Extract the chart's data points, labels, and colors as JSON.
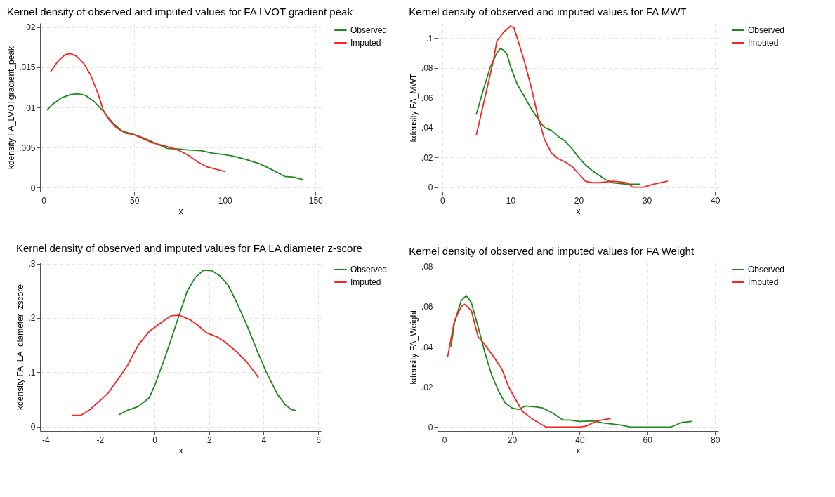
{
  "chart_data": [
    {
      "type": "line",
      "title": "Kernel density of observed and imputed values for FA LVOT gradient peak",
      "xlabel": "x",
      "ylabel": "kdensity FA_LVOTgradient_peak",
      "xlim": [
        -2,
        153
      ],
      "ylim": [
        -0.0005,
        0.0205
      ],
      "xticks": [
        0,
        50,
        100,
        150
      ],
      "yticks": [
        {
          "value": 0,
          "label": "0"
        },
        {
          "value": 0.005,
          "label": ".005"
        },
        {
          "value": 0.01,
          "label": ".01"
        },
        {
          "value": 0.015,
          "label": ".015"
        },
        {
          "value": 0.02,
          "label": ".02"
        }
      ],
      "grid": true,
      "legend": "right",
      "line_style": "solid",
      "series": [
        {
          "name": "Observed",
          "color": "#1a8a1a",
          "x": [
            2,
            5,
            10,
            15,
            19,
            23,
            28,
            33,
            38,
            43,
            50,
            55,
            60,
            68,
            75,
            80,
            87,
            93,
            100,
            105,
            112,
            120,
            128,
            133,
            138,
            143
          ],
          "values": [
            0.0097,
            0.0104,
            0.0112,
            0.0116,
            0.0117,
            0.0115,
            0.0107,
            0.0095,
            0.0081,
            0.0071,
            0.0066,
            0.0062,
            0.0057,
            0.0049,
            0.0048,
            0.0047,
            0.0046,
            0.0043,
            0.0041,
            0.0039,
            0.0035,
            0.0029,
            0.002,
            0.0014,
            0.0013,
            0.001
          ]
        },
        {
          "name": "Imputed",
          "color": "#ff2020",
          "x": [
            4,
            8,
            12,
            15,
            18,
            22,
            26,
            30,
            33,
            36,
            40,
            45,
            50,
            55,
            60,
            65,
            70,
            75,
            80,
            85,
            90,
            95,
            100
          ],
          "values": [
            0.0145,
            0.0158,
            0.0166,
            0.0167,
            0.0164,
            0.0155,
            0.014,
            0.0117,
            0.0096,
            0.0085,
            0.0075,
            0.0068,
            0.0066,
            0.0061,
            0.0056,
            0.0053,
            0.005,
            0.0046,
            0.004,
            0.0032,
            0.0026,
            0.0023,
            0.002
          ]
        }
      ]
    },
    {
      "type": "line",
      "title": "Kernel density of observed and imputed values for FA MWT",
      "xlabel": "x",
      "ylabel": "kdensity FA_MWT",
      "xlim": [
        -0.7,
        40.5
      ],
      "ylim": [
        -0.003,
        0.11
      ],
      "xticks": [
        0,
        10,
        20,
        30,
        40
      ],
      "yticks": [
        {
          "value": 0,
          "label": "0"
        },
        {
          "value": 0.02,
          "label": ".02"
        },
        {
          "value": 0.04,
          "label": ".04"
        },
        {
          "value": 0.06,
          "label": ".06"
        },
        {
          "value": 0.08,
          "label": ".08"
        },
        {
          "value": 0.1,
          "label": ".1"
        }
      ],
      "grid": true,
      "legend": "right",
      "line_style": "solid",
      "series": [
        {
          "name": "Observed",
          "color": "#1a8a1a",
          "x": [
            5,
            6,
            7,
            8,
            8.5,
            9,
            9.5,
            10,
            11,
            12,
            13,
            14,
            15,
            16,
            17,
            18,
            19,
            20,
            21,
            22,
            23,
            24,
            25,
            27,
            29
          ],
          "values": [
            0.049,
            0.065,
            0.08,
            0.09,
            0.093,
            0.092,
            0.089,
            0.081,
            0.069,
            0.061,
            0.053,
            0.046,
            0.04,
            0.038,
            0.034,
            0.031,
            0.026,
            0.02,
            0.015,
            0.011,
            0.008,
            0.005,
            0.003,
            0.002,
            0.002
          ]
        },
        {
          "name": "Imputed",
          "color": "#ff2020",
          "x": [
            5,
            6,
            7,
            7.5,
            8,
            9,
            10,
            10.5,
            11,
            12,
            13,
            14,
            15,
            16,
            17,
            18,
            19,
            20,
            21,
            22,
            23,
            24,
            25,
            26,
            27,
            28,
            29.5,
            31,
            33
          ],
          "values": [
            0.035,
            0.055,
            0.075,
            0.085,
            0.098,
            0.104,
            0.108,
            0.107,
            0.1,
            0.085,
            0.068,
            0.048,
            0.032,
            0.023,
            0.019,
            0.017,
            0.014,
            0.009,
            0.004,
            0.003,
            0.003,
            0.0035,
            0.004,
            0.0035,
            0.003,
            0,
            0,
            0.002,
            0.004
          ]
        }
      ]
    },
    {
      "type": "line",
      "title": "Kernel density of observed and imputed values for FA LA diameter z-score",
      "xlabel": "x",
      "ylabel": "kdensity FA_LA_diameter_zscore",
      "xlim": [
        -4.2,
        6.1
      ],
      "ylim": [
        -0.008,
        0.302
      ],
      "xticks": [
        -4,
        -2,
        0,
        2,
        4,
        6
      ],
      "yticks": [
        {
          "value": 0,
          "label": "0"
        },
        {
          "value": 0.1,
          "label": ".1"
        },
        {
          "value": 0.2,
          "label": ".2"
        },
        {
          "value": 0.3,
          "label": ".3"
        }
      ],
      "grid": true,
      "legend": "right",
      "line_style": "solid",
      "series": [
        {
          "name": "Observed",
          "color": "#1a8a1a",
          "x": [
            -1.3,
            -1,
            -0.6,
            -0.2,
            0,
            0.4,
            0.8,
            1.2,
            1.5,
            1.8,
            2.1,
            2.4,
            2.7,
            3,
            3.4,
            3.8,
            4.1,
            4.5,
            4.8,
            5,
            5.15
          ],
          "values": [
            0.022,
            0.03,
            0.037,
            0.053,
            0.075,
            0.13,
            0.19,
            0.25,
            0.275,
            0.288,
            0.287,
            0.277,
            0.26,
            0.23,
            0.185,
            0.135,
            0.1,
            0.06,
            0.04,
            0.032,
            0.03
          ]
        },
        {
          "name": "Imputed",
          "color": "#ff2020",
          "x": [
            -3,
            -2.7,
            -2.4,
            -2,
            -1.7,
            -1.3,
            -1,
            -0.6,
            -0.2,
            0.2,
            0.6,
            0.9,
            1.3,
            1.6,
            1.9,
            2.3,
            2.6,
            3,
            3.4,
            3.8
          ],
          "values": [
            0.021,
            0.021,
            0.03,
            0.048,
            0.062,
            0.09,
            0.112,
            0.15,
            0.175,
            0.19,
            0.204,
            0.205,
            0.197,
            0.186,
            0.173,
            0.165,
            0.155,
            0.138,
            0.118,
            0.091
          ]
        }
      ]
    },
    {
      "type": "line",
      "title": "Kernel density of observed and imputed values for FA Weight",
      "xlabel": "x",
      "ylabel": "kdensity FA_Weight",
      "xlim": [
        -2,
        81
      ],
      "ylim": [
        -0.002,
        0.082
      ],
      "xticks": [
        0,
        20,
        40,
        60,
        80
      ],
      "yticks": [
        {
          "value": 0,
          "label": "0"
        },
        {
          "value": 0.02,
          "label": ".02"
        },
        {
          "value": 0.04,
          "label": ".04"
        },
        {
          "value": 0.06,
          "label": ".06"
        },
        {
          "value": 0.08,
          "label": ".08"
        }
      ],
      "grid": true,
      "legend": "right",
      "line_style": "solid",
      "series": [
        {
          "name": "Observed",
          "color": "#1a8a1a",
          "x": [
            2,
            3,
            5,
            6.5,
            8,
            10,
            12,
            14,
            16,
            18,
            20,
            22,
            24,
            27,
            29,
            32,
            35,
            37,
            40,
            44,
            47,
            52,
            55,
            60,
            67,
            70,
            73
          ],
          "values": [
            0.04,
            0.052,
            0.063,
            0.0655,
            0.062,
            0.05,
            0.037,
            0.026,
            0.018,
            0.012,
            0.0095,
            0.0087,
            0.0105,
            0.01,
            0.0095,
            0.007,
            0.0035,
            0.0035,
            0.0028,
            0.003,
            0.002,
            0.001,
            0,
            0,
            0,
            0.0022,
            0.0028
          ]
        },
        {
          "name": "Imputed",
          "color": "#ff2020",
          "x": [
            1,
            3,
            5,
            6,
            8,
            10,
            12,
            15,
            17,
            19,
            21,
            23,
            26,
            30,
            35,
            40,
            42,
            45,
            49
          ],
          "values": [
            0.035,
            0.053,
            0.06,
            0.0612,
            0.058,
            0.045,
            0.041,
            0.034,
            0.029,
            0.02,
            0.014,
            0.008,
            0.004,
            0,
            0,
            0,
            0.0005,
            0.003,
            0.0042
          ]
        }
      ]
    }
  ]
}
